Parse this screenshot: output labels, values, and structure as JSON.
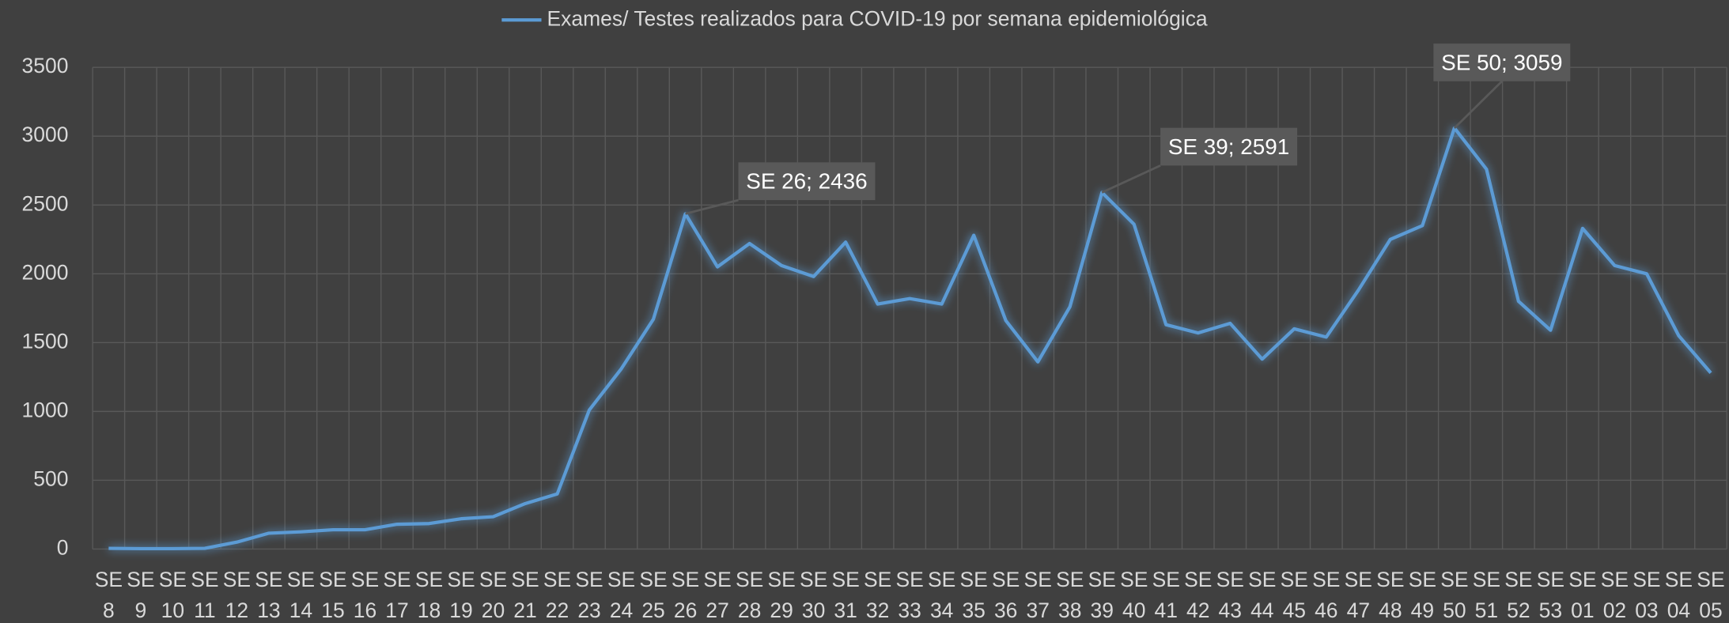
{
  "chart_data": {
    "type": "line",
    "categories": [
      "SE 8",
      "SE 9",
      "SE 10",
      "SE 11",
      "SE 12",
      "SE 13",
      "SE 14",
      "SE 15",
      "SE 16",
      "SE 17",
      "SE 18",
      "SE 19",
      "SE 20",
      "SE 21",
      "SE 22",
      "SE 23",
      "SE 24",
      "SE 25",
      "SE 26",
      "SE 27",
      "SE 28",
      "SE 29",
      "SE 30",
      "SE 31",
      "SE 32",
      "SE 33",
      "SE 34",
      "SE 35",
      "SE 36",
      "SE 37",
      "SE 38",
      "SE 39",
      "SE 40",
      "SE 41",
      "SE 42",
      "SE 43",
      "SE 44",
      "SE 45",
      "SE 46",
      "SE 47",
      "SE 48",
      "SE 49",
      "SE 50",
      "SE 51",
      "SE 52",
      "SE 53",
      "SE 01",
      "SE 02",
      "SE 03",
      "SE 04",
      "SE 05"
    ],
    "series": [
      {
        "name": "Exames/ Testes realizados para COVID-19 por semana epidemiológica",
        "color": "#5b9bd5",
        "values": [
          5,
          3,
          3,
          5,
          50,
          115,
          125,
          140,
          140,
          180,
          185,
          220,
          235,
          330,
          400,
          1010,
          1310,
          1670,
          2436,
          2050,
          2220,
          2060,
          1980,
          2230,
          1780,
          1820,
          1780,
          2280,
          1660,
          1360,
          1760,
          2591,
          2360,
          1630,
          1570,
          1640,
          1380,
          1600,
          1540,
          1880,
          2250,
          2350,
          3059,
          2760,
          1800,
          1590,
          2330,
          2060,
          2000,
          1550,
          1280
        ],
        "value_labels": [
          null,
          null,
          null,
          null,
          null,
          null,
          null,
          null,
          null,
          null,
          null,
          null,
          null,
          null,
          null,
          null,
          null,
          null,
          "SE 26; 2436",
          null,
          null,
          null,
          null,
          null,
          null,
          null,
          null,
          null,
          null,
          null,
          null,
          "SE 39; 2591",
          null,
          null,
          null,
          null,
          null,
          null,
          null,
          null,
          null,
          null,
          "SE 50; 3059",
          null,
          null,
          null,
          null,
          null,
          null,
          null,
          null
        ]
      }
    ],
    "ylim": [
      0,
      3500
    ],
    "yticks": [
      0,
      500,
      1000,
      1500,
      2000,
      2500,
      3000,
      3500
    ],
    "grid": true,
    "legend": "top"
  }
}
